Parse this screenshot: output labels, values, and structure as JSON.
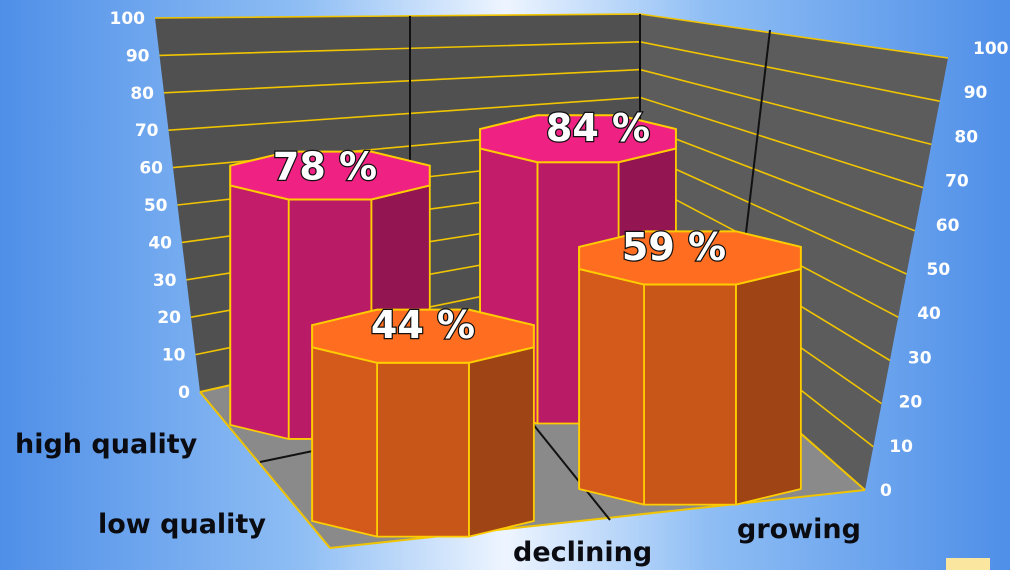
{
  "chart_data": {
    "type": "bar",
    "style": "3d-cylinders",
    "title": "",
    "rows": [
      "high quality",
      "low quality"
    ],
    "columns": [
      "declining",
      "growing"
    ],
    "series": [
      {
        "name": "high quality",
        "values": [
          78,
          84
        ],
        "label_texts": [
          "78 %",
          "84 %"
        ],
        "color": "#c41c6c"
      },
      {
        "name": "low quality",
        "values": [
          44,
          59
        ],
        "label_texts": [
          "44 %",
          "59 %"
        ],
        "color": "#d45a1a"
      }
    ],
    "ylim": [
      0,
      100
    ],
    "left_axis_ticks": [
      "0",
      "10",
      "20",
      "30",
      "40",
      "50",
      "60",
      "70",
      "80",
      "90",
      "100"
    ],
    "right_axis_ticks": [
      "0",
      "10",
      "20",
      "30",
      "40",
      "50",
      "60",
      "70",
      "80",
      "90",
      "100"
    ],
    "grid": true,
    "colors": {
      "wall": "#505050",
      "floor": "#8a8a8a",
      "grid": "#f0c400",
      "high_quality": "#c41c6c",
      "low_quality": "#d45a1a"
    }
  }
}
